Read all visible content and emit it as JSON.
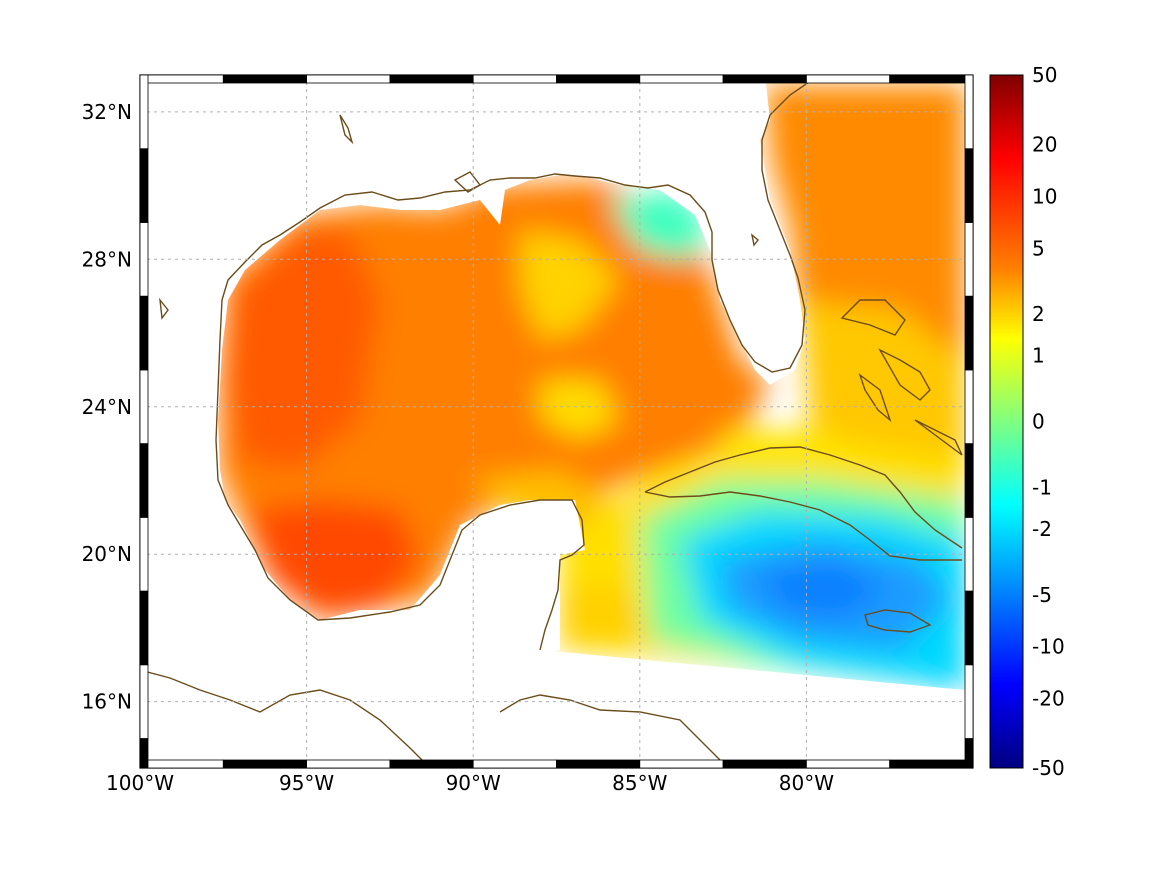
{
  "map": {
    "lon_range": [
      -100,
      -75
    ],
    "lat_range": [
      14.2,
      33.0
    ],
    "lon_ticks": [
      {
        "value": -100,
        "label": "100°W"
      },
      {
        "value": -95,
        "label": "95°W"
      },
      {
        "value": -90,
        "label": "90°W"
      },
      {
        "value": -85,
        "label": "85°W"
      },
      {
        "value": -80,
        "label": "80°W"
      }
    ],
    "lat_ticks": [
      {
        "value": 32,
        "label": "32°N"
      },
      {
        "value": 28,
        "label": "28°N"
      },
      {
        "value": 24,
        "label": "24°N"
      },
      {
        "value": 20,
        "label": "20°N"
      },
      {
        "value": 16,
        "label": "16°N"
      }
    ],
    "grid": true,
    "coastline_color": "#6b4c1a",
    "frame": "black-white checkered border"
  },
  "colorbar": {
    "orientation": "vertical",
    "placement": "right",
    "labels": [
      "50",
      "20",
      "10",
      "5",
      "2",
      "1",
      "0",
      "-1",
      "-2",
      "-5",
      "-10",
      "-20",
      "-50"
    ],
    "colormap": "jet",
    "colors": [
      "#800000",
      "#ff0000",
      "#ff8000",
      "#ffff00",
      "#80ff80",
      "#00ffff",
      "#0080ff",
      "#0000ff",
      "#000080"
    ]
  }
}
